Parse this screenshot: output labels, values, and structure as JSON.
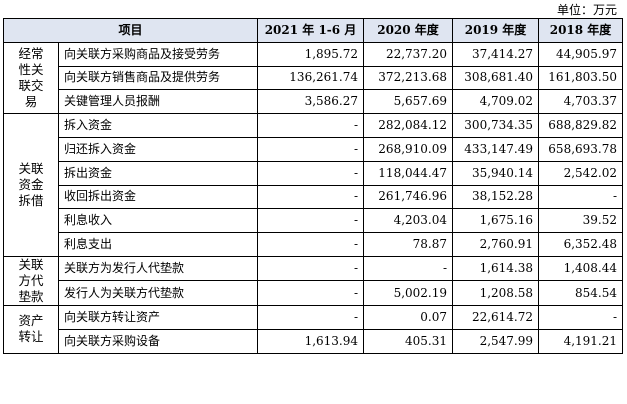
{
  "unit_label": "单位：万元",
  "headers": [
    "项目",
    "2021 年 1-6 月",
    "2020 年度",
    "2019 年度",
    "2018 年度"
  ],
  "groups": [
    {
      "category": "经常性关联交易",
      "category_lines": [
        "经常",
        "性关",
        "联交",
        "易"
      ],
      "rows": [
        {
          "item": "向关联方采购商品及接受劳务",
          "values": [
            "1,895.72",
            "22,737.20",
            "37,414.27",
            "44,905.97"
          ]
        },
        {
          "item": "向关联方销售商品及提供劳务",
          "values": [
            "136,261.74",
            "372,213.68",
            "308,681.40",
            "161,803.50"
          ]
        },
        {
          "item": "关键管理人员报酬",
          "values": [
            "3,586.27",
            "5,657.69",
            "4,709.02",
            "4,703.37"
          ]
        }
      ]
    },
    {
      "category": "关联资金拆借",
      "category_lines": [
        "关联",
        "资金",
        "拆借"
      ],
      "rows": [
        {
          "item": "拆入资金",
          "values": [
            "-",
            "282,084.12",
            "300,734.35",
            "688,829.82"
          ]
        },
        {
          "item": "归还拆入资金",
          "values": [
            "-",
            "268,910.09",
            "433,147.49",
            "658,693.78"
          ]
        },
        {
          "item": "拆出资金",
          "values": [
            "-",
            "118,044.47",
            "35,940.14",
            "2,542.02"
          ]
        },
        {
          "item": "收回拆出资金",
          "values": [
            "-",
            "261,746.96",
            "38,152.28",
            "-"
          ]
        },
        {
          "item": "利息收入",
          "values": [
            "-",
            "4,203.04",
            "1,675.16",
            "39.52"
          ]
        },
        {
          "item": "利息支出",
          "values": [
            "-",
            "78.87",
            "2,760.91",
            "6,352.48"
          ]
        }
      ]
    },
    {
      "category": "关联方代垫款",
      "category_lines": [
        "关联",
        "方代",
        "垫款"
      ],
      "rows": [
        {
          "item": "关联方为发行人代垫款",
          "values": [
            "-",
            "-",
            "1,614.38",
            "1,408.44"
          ]
        },
        {
          "item": "发行人为关联方代垫款",
          "values": [
            "-",
            "5,002.19",
            "1,208.58",
            "854.54"
          ]
        }
      ]
    },
    {
      "category": "资产转让",
      "category_lines": [
        "资产",
        "转让"
      ],
      "rows": [
        {
          "item": "向关联方转让资产",
          "values": [
            "-",
            "0.07",
            "22,614.72",
            "-"
          ]
        },
        {
          "item": "向关联方采购设备",
          "values": [
            "1,613.94",
            "405.31",
            "2,547.99",
            "4,191.21"
          ]
        }
      ]
    }
  ]
}
